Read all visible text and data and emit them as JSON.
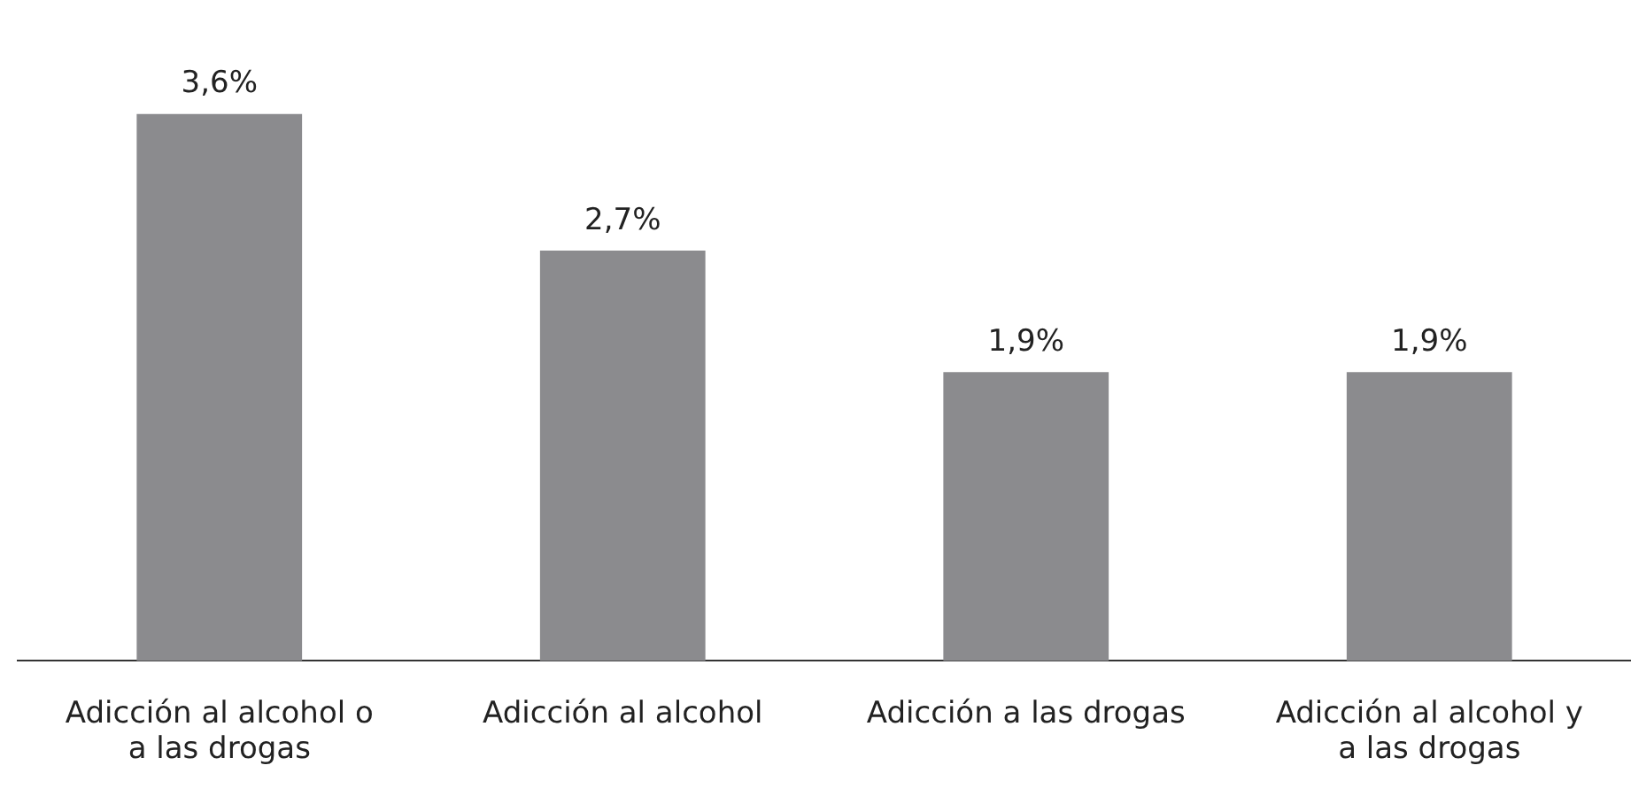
{
  "chart_data": {
    "type": "bar",
    "categories": [
      "Adicción al alcohol o a las drogas",
      "Adicción al alcohol",
      "Adicción a las drogas",
      "Adicción al alcohol y a las drogas"
    ],
    "values": [
      3.6,
      2.7,
      1.9,
      1.9
    ],
    "value_labels": [
      "3,6%",
      "2,7%",
      "1,9%",
      "1,9%"
    ],
    "color": "#8b8b8e",
    "grid": false,
    "legend": false
  }
}
